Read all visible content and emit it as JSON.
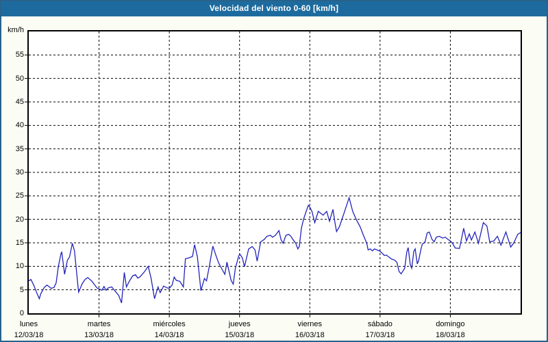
{
  "window": {
    "title": "Velocidad del viento 0-60 [km/h]"
  },
  "colors": {
    "titlebar_bg": "#1d6b9e",
    "frame_border": "#27628c",
    "page_bg": "#fbfdf5",
    "plot_bg": "#ffffff",
    "plot_border": "#000000",
    "grid": "#000000",
    "line": "#2222bb",
    "text": "#000000",
    "title_text": "#ffffff"
  },
  "chart_data": {
    "type": "line",
    "title": "Velocidad del viento 0-60 [km/h]",
    "ylabel": "km/h",
    "xlabel": "",
    "ylim": [
      0,
      60
    ],
    "ytick_step": 5,
    "ytick_labels": [
      "0",
      "5",
      "10",
      "15",
      "20",
      "25",
      "30",
      "35",
      "40",
      "45",
      "50",
      "55"
    ],
    "grid": "dashed horizontal and vertical, black on white",
    "legend_position": "none",
    "x_range_days": [
      0,
      7
    ],
    "x_days": [
      {
        "name": "lunes",
        "date": "12/03/18"
      },
      {
        "name": "martes",
        "date": "13/03/18"
      },
      {
        "name": "miércoles",
        "date": "14/03/18"
      },
      {
        "name": "jueves",
        "date": "15/03/18"
      },
      {
        "name": "viernes",
        "date": "16/03/18"
      },
      {
        "name": "sábado",
        "date": "17/03/18"
      },
      {
        "name": "domingo",
        "date": "18/03/18"
      }
    ],
    "series": [
      {
        "name": "velocidad del viento (km/h)",
        "color": "#2222bb",
        "points": [
          [
            0.0,
            6.9
          ],
          [
            0.03,
            7.2
          ],
          [
            0.07,
            6.0
          ],
          [
            0.12,
            4.1
          ],
          [
            0.15,
            3.1
          ],
          [
            0.17,
            4.1
          ],
          [
            0.22,
            5.5
          ],
          [
            0.26,
            6.0
          ],
          [
            0.32,
            5.3
          ],
          [
            0.36,
            5.5
          ],
          [
            0.39,
            6.5
          ],
          [
            0.42,
            9.9
          ],
          [
            0.46,
            12.8
          ],
          [
            0.47,
            13.0
          ],
          [
            0.51,
            8.3
          ],
          [
            0.55,
            11.3
          ],
          [
            0.58,
            12.0
          ],
          [
            0.62,
            14.9
          ],
          [
            0.65,
            13.3
          ],
          [
            0.67,
            10.4
          ],
          [
            0.7,
            5.8
          ],
          [
            0.71,
            4.5
          ],
          [
            0.76,
            6.3
          ],
          [
            0.8,
            7.2
          ],
          [
            0.84,
            7.6
          ],
          [
            0.9,
            6.8
          ],
          [
            0.97,
            5.4
          ],
          [
            1.0,
            5.2
          ],
          [
            1.04,
            4.9
          ],
          [
            1.07,
            5.7
          ],
          [
            1.1,
            4.9
          ],
          [
            1.13,
            5.4
          ],
          [
            1.18,
            5.6
          ],
          [
            1.23,
            4.7
          ],
          [
            1.28,
            3.8
          ],
          [
            1.32,
            2.2
          ],
          [
            1.36,
            8.7
          ],
          [
            1.39,
            5.6
          ],
          [
            1.43,
            6.8
          ],
          [
            1.48,
            8.0
          ],
          [
            1.52,
            8.2
          ],
          [
            1.55,
            7.5
          ],
          [
            1.58,
            7.7
          ],
          [
            1.65,
            8.9
          ],
          [
            1.7,
            10.0
          ],
          [
            1.74,
            7.5
          ],
          [
            1.79,
            3.1
          ],
          [
            1.84,
            5.6
          ],
          [
            1.87,
            4.4
          ],
          [
            1.92,
            5.8
          ],
          [
            1.97,
            5.4
          ],
          [
            2.0,
            5.3
          ],
          [
            2.04,
            6.0
          ],
          [
            2.07,
            7.7
          ],
          [
            2.1,
            7.0
          ],
          [
            2.15,
            6.8
          ],
          [
            2.2,
            5.6
          ],
          [
            2.23,
            11.6
          ],
          [
            2.28,
            11.8
          ],
          [
            2.33,
            12.1
          ],
          [
            2.36,
            14.6
          ],
          [
            2.4,
            12.0
          ],
          [
            2.45,
            4.8
          ],
          [
            2.5,
            7.4
          ],
          [
            2.53,
            6.9
          ],
          [
            2.57,
            10.0
          ],
          [
            2.62,
            14.3
          ],
          [
            2.66,
            12.5
          ],
          [
            2.7,
            10.8
          ],
          [
            2.76,
            9.1
          ],
          [
            2.79,
            8.3
          ],
          [
            2.82,
            10.9
          ],
          [
            2.88,
            7.0
          ],
          [
            2.91,
            6.2
          ],
          [
            2.94,
            9.6
          ],
          [
            2.99,
            12.3
          ],
          [
            3.01,
            12.5
          ],
          [
            3.04,
            11.8
          ],
          [
            3.07,
            9.9
          ],
          [
            3.13,
            13.7
          ],
          [
            3.18,
            14.2
          ],
          [
            3.22,
            13.5
          ],
          [
            3.25,
            11.1
          ],
          [
            3.3,
            15.2
          ],
          [
            3.35,
            15.7
          ],
          [
            3.39,
            16.4
          ],
          [
            3.44,
            16.6
          ],
          [
            3.47,
            16.2
          ],
          [
            3.51,
            16.6
          ],
          [
            3.56,
            17.6
          ],
          [
            3.59,
            15.7
          ],
          [
            3.62,
            14.9
          ],
          [
            3.66,
            16.6
          ],
          [
            3.7,
            16.8
          ],
          [
            3.73,
            16.4
          ],
          [
            3.76,
            15.7
          ],
          [
            3.8,
            14.9
          ],
          [
            3.83,
            13.7
          ],
          [
            3.85,
            14.2
          ],
          [
            3.88,
            18.1
          ],
          [
            3.91,
            20.0
          ],
          [
            3.95,
            21.8
          ],
          [
            3.98,
            23.0
          ],
          [
            4.0,
            22.6
          ],
          [
            4.03,
            21.7
          ],
          [
            4.07,
            19.3
          ],
          [
            4.12,
            21.7
          ],
          [
            4.19,
            20.9
          ],
          [
            4.24,
            21.7
          ],
          [
            4.28,
            19.6
          ],
          [
            4.33,
            22.1
          ],
          [
            4.36,
            19.1
          ],
          [
            4.38,
            17.4
          ],
          [
            4.42,
            18.4
          ],
          [
            4.48,
            21.0
          ],
          [
            4.56,
            24.6
          ],
          [
            4.61,
            21.7
          ],
          [
            4.66,
            20.0
          ],
          [
            4.72,
            18.3
          ],
          [
            4.75,
            17.1
          ],
          [
            4.81,
            14.9
          ],
          [
            4.83,
            13.5
          ],
          [
            4.86,
            13.7
          ],
          [
            4.89,
            13.3
          ],
          [
            4.92,
            13.7
          ],
          [
            4.97,
            13.4
          ],
          [
            5.0,
            13.2
          ],
          [
            5.03,
            12.8
          ],
          [
            5.06,
            12.3
          ],
          [
            5.09,
            12.4
          ],
          [
            5.14,
            11.8
          ],
          [
            5.17,
            11.5
          ],
          [
            5.21,
            11.3
          ],
          [
            5.24,
            10.8
          ],
          [
            5.27,
            8.9
          ],
          [
            5.3,
            8.4
          ],
          [
            5.33,
            9.1
          ],
          [
            5.35,
            9.6
          ],
          [
            5.38,
            13.0
          ],
          [
            5.4,
            14.0
          ],
          [
            5.43,
            10.3
          ],
          [
            5.45,
            9.6
          ],
          [
            5.48,
            13.2
          ],
          [
            5.5,
            13.7
          ],
          [
            5.53,
            10.5
          ],
          [
            5.55,
            11.3
          ],
          [
            5.58,
            13.5
          ],
          [
            5.6,
            14.7
          ],
          [
            5.64,
            15.2
          ],
          [
            5.67,
            17.1
          ],
          [
            5.7,
            17.3
          ],
          [
            5.74,
            15.7
          ],
          [
            5.77,
            15.2
          ],
          [
            5.8,
            16.2
          ],
          [
            5.84,
            16.4
          ],
          [
            5.89,
            16.0
          ],
          [
            5.93,
            16.2
          ],
          [
            5.96,
            15.8
          ],
          [
            6.0,
            15.4
          ],
          [
            6.03,
            14.9
          ],
          [
            6.07,
            13.9
          ],
          [
            6.13,
            13.8
          ],
          [
            6.19,
            18.1
          ],
          [
            6.23,
            15.4
          ],
          [
            6.27,
            16.9
          ],
          [
            6.3,
            15.6
          ],
          [
            6.35,
            17.3
          ],
          [
            6.4,
            14.9
          ],
          [
            6.47,
            19.3
          ],
          [
            6.52,
            18.6
          ],
          [
            6.56,
            15.2
          ],
          [
            6.62,
            15.4
          ],
          [
            6.67,
            16.4
          ],
          [
            6.72,
            14.5
          ],
          [
            6.79,
            17.3
          ],
          [
            6.86,
            14.1
          ],
          [
            6.9,
            14.9
          ],
          [
            6.96,
            16.8
          ],
          [
            7.0,
            17.2
          ]
        ]
      }
    ]
  }
}
